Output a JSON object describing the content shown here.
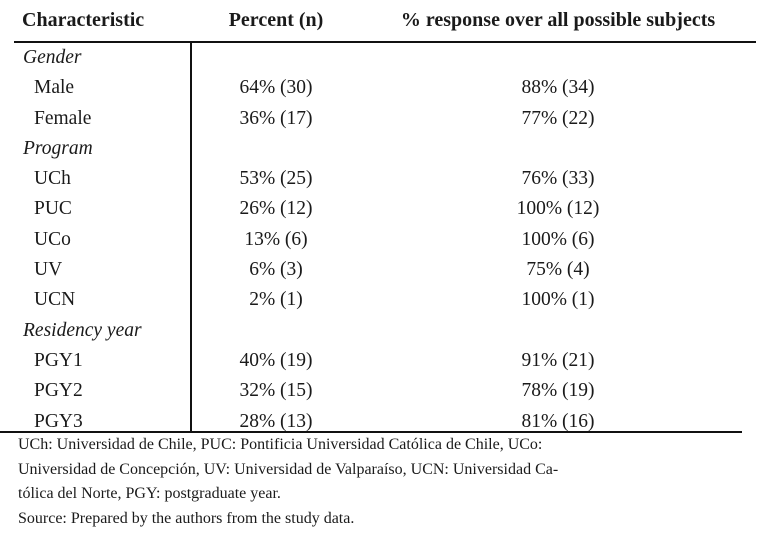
{
  "table": {
    "headers": [
      "Characteristic",
      "Percent (n)",
      "% response over all possible subjects"
    ],
    "rows": [
      {
        "type": "category",
        "label": "Gender",
        "percent": "",
        "response": ""
      },
      {
        "type": "item",
        "label": "Male",
        "percent": "64% (30)",
        "response": "88% (34)"
      },
      {
        "type": "item",
        "label": "Female",
        "percent": "36% (17)",
        "response": "77% (22)"
      },
      {
        "type": "category",
        "label": "Program",
        "percent": "",
        "response": ""
      },
      {
        "type": "item",
        "label": "UCh",
        "percent": "53% (25)",
        "response": "76% (33)"
      },
      {
        "type": "item",
        "label": "PUC",
        "percent": "26% (12)",
        "response": "100% (12)"
      },
      {
        "type": "item",
        "label": "UCo",
        "percent": "13% (6)",
        "response": "100% (6)"
      },
      {
        "type": "item",
        "label": "UV",
        "percent": "6% (3)",
        "response": "75% (4)"
      },
      {
        "type": "item",
        "label": "UCN",
        "percent": "2% (1)",
        "response": "100% (1)"
      },
      {
        "type": "category",
        "label": "Residency year",
        "percent": "",
        "response": ""
      },
      {
        "type": "item",
        "label": "PGY1",
        "percent": "40% (19)",
        "response": "91% (21)"
      },
      {
        "type": "item",
        "label": "PGY2",
        "percent": "32% (15)",
        "response": "78% (19)"
      },
      {
        "type": "item",
        "label": "PGY3",
        "percent": "28% (13)",
        "response": "81% (16)"
      }
    ]
  },
  "notes": [
    "UCh: Universidad de Chile, PUC: Pontificia Universidad Católica de Chile, UCo:",
    "Universidad de Concepción, UV: Universidad de Valparaíso, UCN: Universidad Ca-",
    "tólica del Norte, PGY: postgraduate year.",
    "Source: Prepared by the authors from the study data."
  ]
}
